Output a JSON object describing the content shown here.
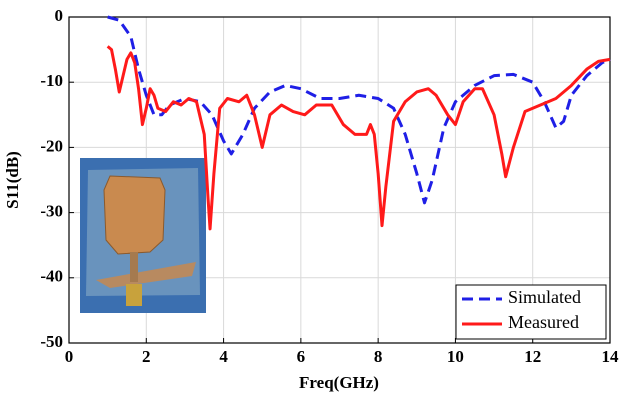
{
  "chart_data": {
    "type": "line",
    "xlabel": "Freq(GHz)",
    "ylabel": "S11(dB)",
    "xlim": [
      0,
      14
    ],
    "xticks": [
      0,
      2,
      4,
      6,
      8,
      10,
      12,
      14
    ],
    "ylim": [
      -50,
      0
    ],
    "yticks": [
      -50,
      -40,
      -30,
      -20,
      -10,
      0
    ],
    "grid": true,
    "legend": "lower right",
    "series": [
      {
        "name": "Simulated",
        "color": "#1f1fe6",
        "dash": true,
        "x": [
          1.0,
          1.3,
          1.6,
          1.8,
          2.0,
          2.2,
          2.4,
          2.6,
          3.0,
          3.4,
          3.7,
          4.0,
          4.2,
          4.5,
          4.8,
          5.2,
          5.6,
          6.0,
          6.5,
          7.0,
          7.5,
          8.0,
          8.4,
          8.7,
          9.0,
          9.2,
          9.4,
          9.7,
          10.0,
          10.5,
          11.0,
          11.5,
          12.0,
          12.3,
          12.6,
          12.8,
          13.0,
          13.4,
          13.8,
          14.0
        ],
        "values": [
          0,
          -0.5,
          -3,
          -8,
          -12,
          -15,
          -15,
          -13.5,
          -12.5,
          -13,
          -15,
          -19,
          -21,
          -18,
          -14,
          -11.5,
          -10.5,
          -11,
          -12.5,
          -12.5,
          -12,
          -12.5,
          -14,
          -18,
          -24,
          -28.5,
          -25,
          -17,
          -13,
          -10.5,
          -9,
          -8.8,
          -10,
          -13,
          -17,
          -16,
          -12,
          -9,
          -7,
          -6.5
        ]
      },
      {
        "name": "Measured",
        "color": "#ff1a1a",
        "dash": false,
        "x": [
          1.0,
          1.1,
          1.2,
          1.3,
          1.4,
          1.5,
          1.6,
          1.7,
          1.8,
          1.9,
          2.0,
          2.1,
          2.2,
          2.3,
          2.5,
          2.7,
          2.9,
          3.1,
          3.3,
          3.5,
          3.6,
          3.65,
          3.75,
          3.9,
          4.1,
          4.4,
          4.6,
          4.8,
          5.0,
          5.2,
          5.5,
          5.8,
          6.1,
          6.4,
          6.8,
          7.1,
          7.4,
          7.7,
          7.8,
          7.9,
          8.0,
          8.1,
          8.2,
          8.4,
          8.7,
          9.0,
          9.3,
          9.5,
          9.8,
          10.0,
          10.2,
          10.5,
          10.7,
          11.0,
          11.2,
          11.3,
          11.5,
          11.8,
          12.2,
          12.6,
          13.0,
          13.4,
          13.7,
          14.0
        ],
        "values": [
          -4.5,
          -5,
          -8,
          -11.5,
          -9,
          -6.5,
          -5.5,
          -7,
          -11,
          -16.5,
          -14,
          -11,
          -12,
          -14,
          -14.5,
          -13,
          -13.5,
          -12.5,
          -13,
          -18,
          -28,
          -32.5,
          -24,
          -14,
          -12.5,
          -13,
          -12,
          -15,
          -20,
          -15,
          -13.5,
          -14.5,
          -15,
          -13.5,
          -13.5,
          -16.5,
          -18,
          -18,
          -16.5,
          -18,
          -24,
          -32,
          -26,
          -16,
          -13,
          -11.5,
          -11,
          -12,
          -15,
          -16.5,
          -13,
          -11,
          -11,
          -15,
          -21,
          -24.5,
          -20,
          -14.5,
          -13.5,
          -12.5,
          -10.5,
          -8,
          -6.8,
          -6.5
        ]
      }
    ]
  }
}
